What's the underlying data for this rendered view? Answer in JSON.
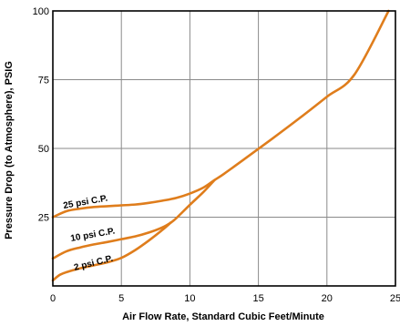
{
  "chart_data": {
    "type": "line",
    "title": "",
    "xlabel": "Air Flow Rate, Standard Cubic Feet/Minute",
    "ylabel": "Pressure Drop (to Atmosphere), PSIG",
    "xlim": [
      0,
      25
    ],
    "ylim": [
      0,
      100
    ],
    "x_ticks": [
      "0",
      "5",
      "10",
      "15",
      "20",
      "25"
    ],
    "y_ticks": [
      "25",
      "50",
      "75",
      "100"
    ],
    "grid": true,
    "line_color": "#df7d1c",
    "series": [
      {
        "name": "25 psi C.P.",
        "x": [
          0,
          1,
          2,
          3,
          4,
          5,
          6,
          7,
          8,
          9,
          10,
          11,
          11.8,
          12.5,
          14,
          16,
          18,
          20,
          22,
          24.5
        ],
        "y": [
          25,
          27.2,
          28.1,
          28.7,
          29,
          29.3,
          29.6,
          30.2,
          31,
          32,
          33.6,
          35.8,
          38.5,
          40.8,
          46.2,
          53.5,
          61,
          68.8,
          76.8,
          100
        ]
      },
      {
        "name": "10 psi C.P.",
        "x": [
          0,
          1,
          2,
          3,
          4,
          5,
          6,
          7,
          8,
          8.6,
          9,
          10,
          11,
          11.8
        ],
        "y": [
          10,
          12.6,
          14,
          15.1,
          16,
          17,
          18,
          19.4,
          21.3,
          23,
          24.6,
          29.5,
          34.2,
          38.5
        ]
      },
      {
        "name": "2 psi C.P.",
        "x": [
          0,
          0.5,
          1,
          2,
          3,
          4,
          5,
          6,
          7,
          8,
          8.6
        ],
        "y": [
          2,
          4,
          5,
          6.4,
          7.5,
          8.6,
          10.2,
          13,
          16.5,
          20.4,
          23
        ]
      }
    ],
    "curve_labels": [
      "25 psi C.P.",
      "10 psi C.P.",
      "2 psi C.P."
    ]
  }
}
